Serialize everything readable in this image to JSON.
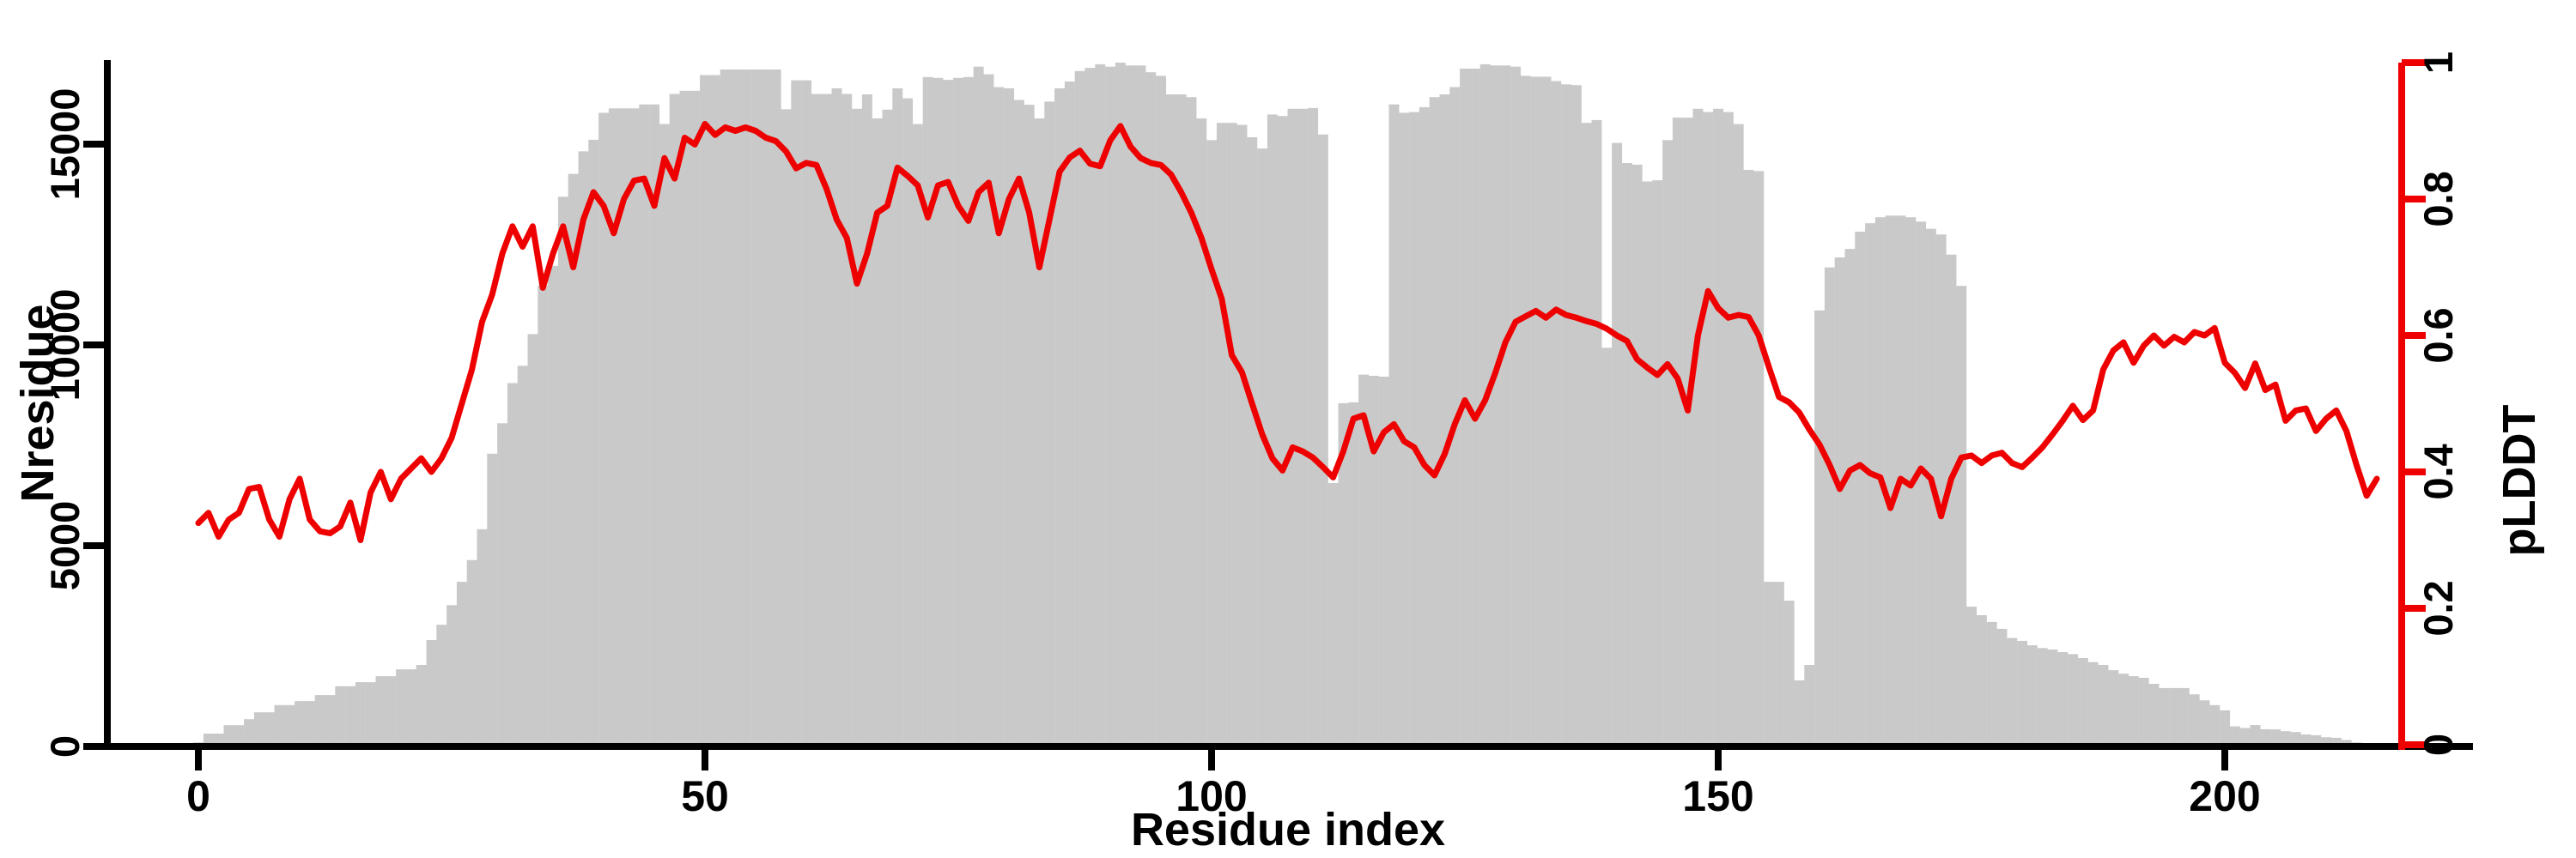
{
  "chart_data": {
    "type": "bar+line",
    "title": "",
    "xlabel": "Residue index",
    "ylabel_left": "Nresidue",
    "ylabel_right": "pLDDT",
    "x_ticks": [
      0,
      50,
      100,
      150,
      200
    ],
    "y_left_ticks": [
      0,
      5000,
      10000,
      15000
    ],
    "y_right_ticks": [
      0,
      0.2,
      0.4,
      0.6,
      0.8,
      1
    ],
    "xlim": [
      -9,
      224.5
    ],
    "ylim_left": [
      0,
      17100
    ],
    "ylim_right": [
      0,
      1.0
    ],
    "grid": false,
    "legend": "none",
    "bar_color": "#c9c9c9",
    "line_color": "#ee0000",
    "axis_color": "#000000",
    "x": [
      0,
      1,
      2,
      3,
      4,
      5,
      6,
      7,
      8,
      9,
      10,
      11,
      12,
      13,
      14,
      15,
      16,
      17,
      18,
      19,
      20,
      21,
      22,
      23,
      24,
      25,
      26,
      27,
      28,
      29,
      30,
      31,
      32,
      33,
      34,
      35,
      36,
      37,
      38,
      39,
      40,
      41,
      42,
      43,
      44,
      45,
      46,
      47,
      48,
      49,
      50,
      51,
      52,
      53,
      54,
      55,
      56,
      57,
      58,
      59,
      60,
      61,
      62,
      63,
      64,
      65,
      66,
      67,
      68,
      69,
      70,
      71,
      72,
      73,
      74,
      75,
      76,
      77,
      78,
      79,
      80,
      81,
      82,
      83,
      84,
      85,
      86,
      87,
      88,
      89,
      90,
      91,
      92,
      93,
      94,
      95,
      96,
      97,
      98,
      99,
      100,
      101,
      102,
      103,
      104,
      105,
      106,
      107,
      108,
      109,
      110,
      111,
      112,
      113,
      114,
      115,
      116,
      117,
      118,
      119,
      120,
      121,
      122,
      123,
      124,
      125,
      126,
      127,
      128,
      129,
      130,
      131,
      132,
      133,
      134,
      135,
      136,
      137,
      138,
      139,
      140,
      141,
      142,
      143,
      144,
      145,
      146,
      147,
      148,
      149,
      150,
      151,
      152,
      153,
      154,
      155,
      156,
      157,
      158,
      159,
      160,
      161,
      162,
      163,
      164,
      165,
      166,
      167,
      168,
      169,
      170,
      171,
      172,
      173,
      174,
      175,
      176,
      177,
      178,
      179,
      180,
      181,
      182,
      183,
      184,
      185,
      186,
      187,
      188,
      189,
      190,
      191,
      192,
      193,
      194,
      195,
      196,
      197,
      198,
      199,
      200,
      201,
      202,
      203,
      204,
      205,
      206,
      207,
      208,
      209,
      210,
      211,
      212,
      213,
      214,
      215
    ],
    "series": [
      {
        "name": "Nresidue",
        "type": "bar",
        "axis": "left",
        "values": [
          100,
          320,
          320,
          530,
          530,
          680,
          850,
          850,
          1030,
          1030,
          1130,
          1130,
          1280,
          1280,
          1500,
          1500,
          1600,
          1600,
          1750,
          1750,
          1920,
          1920,
          2030,
          2650,
          3030,
          3520,
          4100,
          4640,
          5410,
          7290,
          8050,
          9050,
          9480,
          10270,
          11480,
          11970,
          13690,
          14260,
          14820,
          15110,
          15780,
          15890,
          15890,
          15890,
          15990,
          15990,
          15500,
          16250,
          16330,
          16330,
          16720,
          16720,
          16860,
          16860,
          16860,
          16860,
          16860,
          16860,
          15870,
          16590,
          16590,
          16250,
          16250,
          16390,
          16250,
          15880,
          16240,
          15640,
          15860,
          16390,
          16140,
          15500,
          16670,
          16650,
          16600,
          16650,
          16670,
          16930,
          16740,
          16420,
          16390,
          16100,
          15980,
          15640,
          16060,
          16390,
          16560,
          16820,
          16900,
          16990,
          16930,
          17030,
          16960,
          16960,
          16790,
          16700,
          16240,
          16240,
          16170,
          15640,
          15100,
          15530,
          15530,
          15480,
          15170,
          14890,
          15740,
          15700,
          15880,
          15880,
          15900,
          15240,
          6560,
          8550,
          8570,
          9260,
          9230,
          9210,
          15990,
          15780,
          15800,
          15920,
          16170,
          16240,
          16420,
          16880,
          16880,
          16990,
          16960,
          16960,
          16930,
          16700,
          16680,
          16680,
          16570,
          16490,
          16470,
          15530,
          15600,
          9930,
          15030,
          14530,
          14490,
          14070,
          14100,
          15100,
          15660,
          15660,
          15880,
          15800,
          15880,
          15800,
          15500,
          14360,
          14330,
          4100,
          4100,
          3630,
          1645,
          2030,
          10860,
          11930,
          12180,
          12390,
          12820,
          13030,
          13180,
          13220,
          13220,
          13180,
          13070,
          12890,
          12750,
          12250,
          11470,
          3480,
          3270,
          3100,
          2930,
          2700,
          2630,
          2520,
          2450,
          2415,
          2350,
          2300,
          2200,
          2100,
          2030,
          1900,
          1815,
          1750,
          1710,
          1560,
          1455,
          1455,
          1455,
          1300,
          1150,
          1030,
          900,
          500,
          460,
          535,
          430,
          425,
          380,
          360,
          300,
          280,
          230,
          215,
          160,
          100,
          65,
          40
        ]
      },
      {
        "name": "pLDDT",
        "type": "line",
        "axis": "right",
        "values": [
          0.325,
          0.34,
          0.305,
          0.33,
          0.34,
          0.375,
          0.378,
          0.33,
          0.305,
          0.36,
          0.39,
          0.33,
          0.313,
          0.31,
          0.32,
          0.355,
          0.3,
          0.37,
          0.4,
          0.36,
          0.39,
          0.405,
          0.42,
          0.4,
          0.42,
          0.45,
          0.5,
          0.55,
          0.62,
          0.66,
          0.72,
          0.76,
          0.73,
          0.76,
          0.67,
          0.72,
          0.76,
          0.7,
          0.77,
          0.81,
          0.79,
          0.75,
          0.8,
          0.827,
          0.83,
          0.79,
          0.86,
          0.83,
          0.89,
          0.88,
          0.91,
          0.894,
          0.905,
          0.9,
          0.905,
          0.9,
          0.89,
          0.885,
          0.87,
          0.845,
          0.853,
          0.85,
          0.815,
          0.77,
          0.743,
          0.676,
          0.72,
          0.78,
          0.79,
          0.846,
          0.834,
          0.82,
          0.773,
          0.82,
          0.825,
          0.79,
          0.768,
          0.81,
          0.824,
          0.75,
          0.8,
          0.83,
          0.78,
          0.7,
          0.77,
          0.84,
          0.861,
          0.871,
          0.852,
          0.848,
          0.886,
          0.907,
          0.877,
          0.86,
          0.853,
          0.85,
          0.836,
          0.81,
          0.78,
          0.743,
          0.697,
          0.654,
          0.571,
          0.546,
          0.5,
          0.455,
          0.42,
          0.402,
          0.436,
          0.43,
          0.421,
          0.407,
          0.392,
          0.43,
          0.478,
          0.483,
          0.43,
          0.458,
          0.47,
          0.445,
          0.436,
          0.41,
          0.395,
          0.426,
          0.47,
          0.505,
          0.478,
          0.505,
          0.545,
          0.59,
          0.62,
          0.628,
          0.636,
          0.626,
          0.638,
          0.63,
          0.626,
          0.621,
          0.617,
          0.61,
          0.6,
          0.592,
          0.565,
          0.553,
          0.542,
          0.558,
          0.537,
          0.49,
          0.6,
          0.665,
          0.64,
          0.626,
          0.63,
          0.627,
          0.6,
          0.554,
          0.51,
          0.502,
          0.487,
          0.462,
          0.44,
          0.41,
          0.375,
          0.402,
          0.41,
          0.398,
          0.392,
          0.347,
          0.39,
          0.38,
          0.405,
          0.39,
          0.335,
          0.39,
          0.421,
          0.424,
          0.413,
          0.424,
          0.428,
          0.413,
          0.407,
          0.421,
          0.436,
          0.455,
          0.475,
          0.497,
          0.476,
          0.49,
          0.55,
          0.578,
          0.59,
          0.56,
          0.585,
          0.6,
          0.585,
          0.598,
          0.59,
          0.605,
          0.6,
          0.611,
          0.56,
          0.545,
          0.523,
          0.559,
          0.52,
          0.528,
          0.475,
          0.49,
          0.493,
          0.46,
          0.478,
          0.49,
          0.46,
          0.41,
          0.365,
          0.39
        ]
      }
    ]
  }
}
